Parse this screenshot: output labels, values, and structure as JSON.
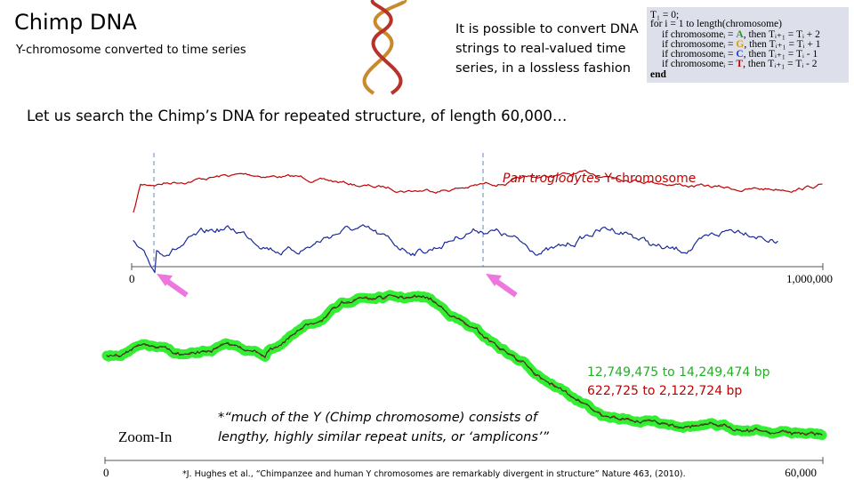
{
  "header": {
    "title": "Chimp DNA",
    "subtitle": "Y-chromosome converted to time series"
  },
  "intro": [
    "It is possible to convert DNA",
    "strings to real-valued time",
    "series, in a lossless fashion"
  ],
  "code": {
    "init": "T₁ = 0;",
    "loop": "for i = 1 to length(chromosome)",
    "rules": [
      {
        "pre": "if chromosomeᵢ = ",
        "letter": "A",
        "post": ", then Tᵢ₊₁ = Tᵢ + 2"
      },
      {
        "pre": "if chromosomeᵢ = ",
        "letter": "G",
        "post": ", then Tᵢ₊₁ = Tᵢ + 1"
      },
      {
        "pre": "if chromosomeᵢ = ",
        "letter": "C",
        "post": ", then Tᵢ₊₁ = Tᵢ - 1"
      },
      {
        "pre": "if chromosomeᵢ = ",
        "letter": "T",
        "post": ", then Tᵢ₊₁ = Tᵢ - 2"
      }
    ],
    "end": "end"
  },
  "search": "Let us search the Chimp’s DNA for repeated structure, of length 60,000…",
  "top_chart": {
    "label_italic": "Pan troglodytes",
    "label": " Y-chromosome",
    "axis_start": "0",
    "axis_end": "1,000,000"
  },
  "zoom": {
    "range_green": "12,749,475 to 14,249,474 bp",
    "range_red": "622,725 to 2,122,724 bp",
    "label": "Zoom-In",
    "quote": [
      "*“much of the Y (Chimp chromosome) consists of",
      "lengthy, highly similar repeat units, or ‘amplicons’”"
    ],
    "axis_start": "0",
    "axis_end": "60,000"
  },
  "citation": "*J. Hughes et al., “Chimpanzee and human Y chromosomes are remarkably divergent in structure” Nature 463, (2010)."
}
